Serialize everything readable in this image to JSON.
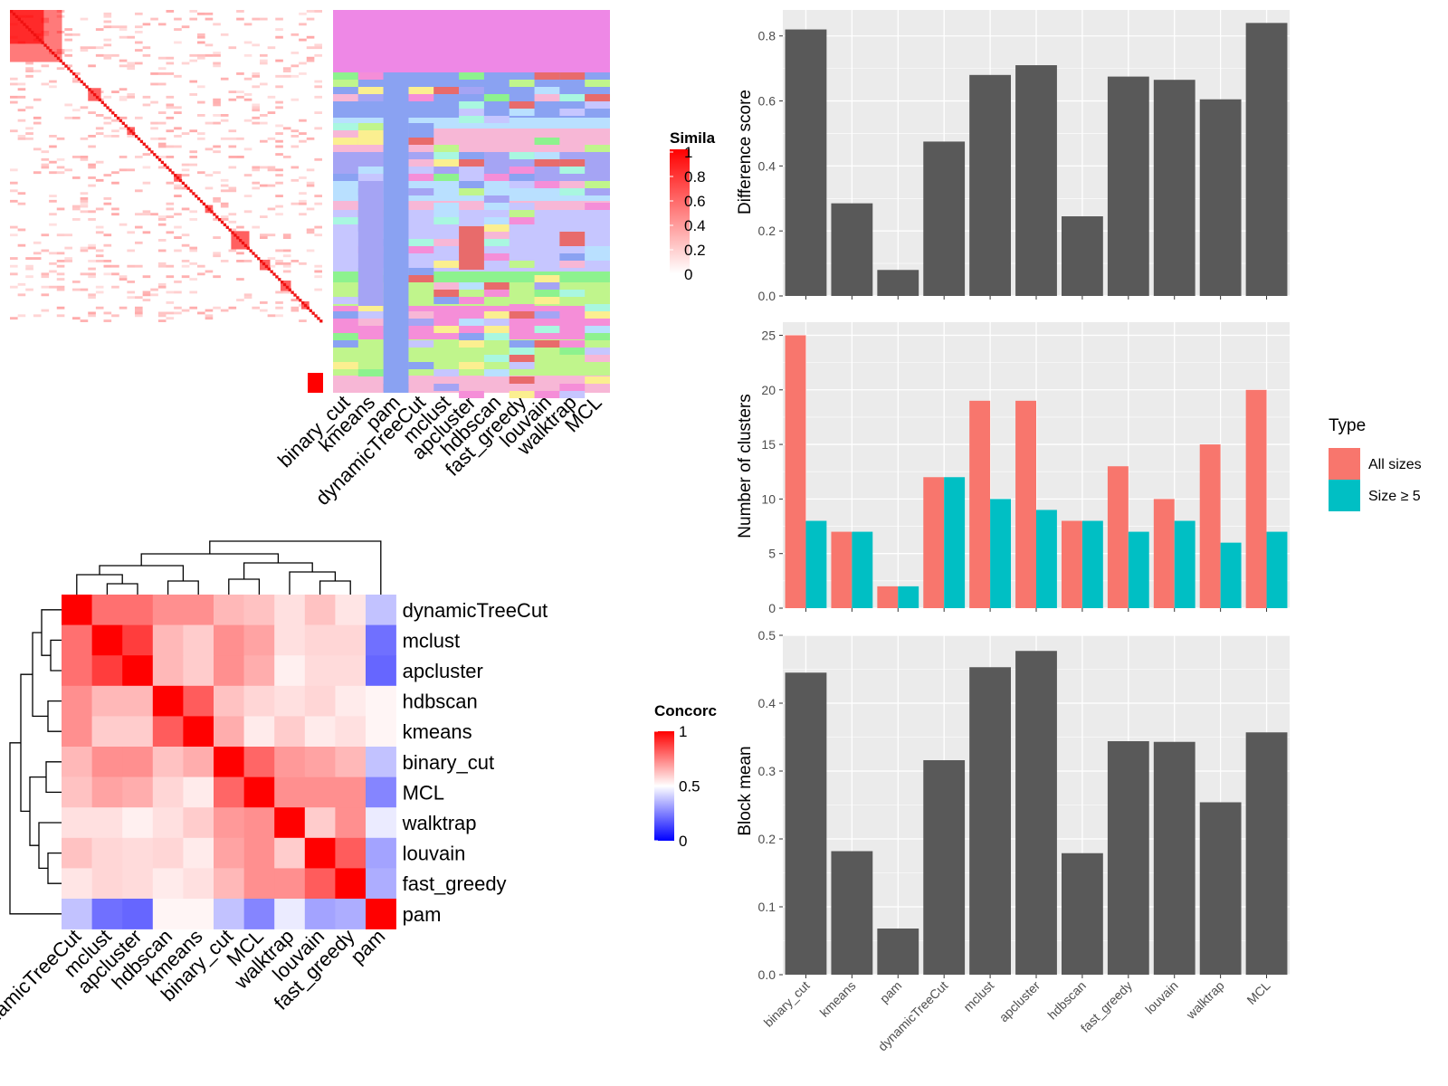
{
  "chart_data": [
    {
      "type": "heatmap",
      "legend_title": "Simila",
      "legend_ticks": [
        "1",
        "0.8",
        "0.6",
        "0.4",
        "0.2",
        "0"
      ],
      "column_labels": [
        "binary_cut",
        "kmeans",
        "pam",
        "dynamicTreeCut",
        "mclust",
        "apcluster",
        "hdbscan",
        "fast_greedy",
        "louvain",
        "walktrap",
        "MCL"
      ]
    },
    {
      "type": "heatmap",
      "legend_title": "Concorc",
      "legend_ticks": [
        "1",
        "0.5",
        "0"
      ],
      "row_labels": [
        "dynamicTreeCut",
        "mclust",
        "apcluster",
        "hdbscan",
        "kmeans",
        "binary_cut",
        "MCL",
        "walktrap",
        "louvain",
        "fast_greedy",
        "pam"
      ],
      "column_labels": [
        "dynamicTreeCut",
        "mclust",
        "apcluster",
        "hdbscan",
        "kmeans",
        "binary_cut",
        "MCL",
        "walktrap",
        "louvain",
        "fast_greedy",
        "pam"
      ],
      "values": [
        [
          1.0,
          0.78,
          0.78,
          0.72,
          0.72,
          0.64,
          0.62,
          0.56,
          0.62,
          0.55,
          0.38
        ],
        [
          0.78,
          1.0,
          0.88,
          0.64,
          0.6,
          0.72,
          0.68,
          0.56,
          0.58,
          0.58,
          0.22
        ],
        [
          0.78,
          0.88,
          1.0,
          0.64,
          0.6,
          0.72,
          0.66,
          0.53,
          0.57,
          0.57,
          0.2
        ],
        [
          0.72,
          0.64,
          0.64,
          1.0,
          0.82,
          0.62,
          0.58,
          0.56,
          0.58,
          0.54,
          0.52
        ],
        [
          0.72,
          0.6,
          0.6,
          0.82,
          1.0,
          0.66,
          0.54,
          0.6,
          0.54,
          0.56,
          0.52
        ],
        [
          0.64,
          0.72,
          0.72,
          0.62,
          0.66,
          1.0,
          0.8,
          0.7,
          0.68,
          0.64,
          0.38
        ],
        [
          0.62,
          0.68,
          0.66,
          0.58,
          0.54,
          0.8,
          1.0,
          0.72,
          0.72,
          0.72,
          0.26
        ],
        [
          0.56,
          0.56,
          0.53,
          0.56,
          0.6,
          0.7,
          0.72,
          1.0,
          0.6,
          0.72,
          0.46
        ],
        [
          0.62,
          0.58,
          0.57,
          0.58,
          0.54,
          0.68,
          0.72,
          0.6,
          1.0,
          0.82,
          0.32
        ],
        [
          0.55,
          0.58,
          0.57,
          0.54,
          0.56,
          0.64,
          0.72,
          0.72,
          0.82,
          1.0,
          0.34
        ],
        [
          0.38,
          0.22,
          0.2,
          0.52,
          0.52,
          0.38,
          0.26,
          0.46,
          0.32,
          0.34,
          1.0
        ]
      ]
    },
    {
      "type": "bar",
      "categories": [
        "binary_cut",
        "kmeans",
        "pam",
        "dynamicTreeCut",
        "mclust",
        "apcluster",
        "hdbscan",
        "fast_greedy",
        "louvain",
        "walktrap",
        "MCL"
      ],
      "values": [
        0.82,
        0.285,
        0.08,
        0.475,
        0.68,
        0.71,
        0.245,
        0.675,
        0.665,
        0.605,
        0.84
      ],
      "ylabel": "Difference score",
      "ylim": [
        0,
        0.88
      ],
      "yticks": [
        "0.0",
        "0.2",
        "0.4",
        "0.6",
        "0.8"
      ]
    },
    {
      "type": "bar",
      "categories": [
        "binary_cut",
        "kmeans",
        "pam",
        "dynamicTreeCut",
        "mclust",
        "apcluster",
        "hdbscan",
        "fast_greedy",
        "louvain",
        "walktrap",
        "MCL"
      ],
      "series": [
        {
          "name": "All sizes",
          "values": [
            25,
            7,
            2,
            12,
            19,
            19,
            8,
            13,
            10,
            15,
            20
          ],
          "color": "#f8766d"
        },
        {
          "name": "Size ≥ 5",
          "values": [
            8,
            7,
            2,
            12,
            10,
            9,
            8,
            7,
            8,
            6,
            7
          ],
          "color": "#00bfc4"
        }
      ],
      "ylabel": "Number of clusters",
      "ylim": [
        0,
        26.2
      ],
      "yticks": [
        "0",
        "5",
        "10",
        "15",
        "20",
        "25"
      ],
      "legend_title": "Type",
      "legend_placement": "right"
    },
    {
      "type": "bar",
      "categories": [
        "binary_cut",
        "kmeans",
        "pam",
        "dynamicTreeCut",
        "mclust",
        "apcluster",
        "hdbscan",
        "fast_greedy",
        "louvain",
        "walktrap",
        "MCL"
      ],
      "values": [
        0.445,
        0.182,
        0.068,
        0.316,
        0.453,
        0.477,
        0.179,
        0.344,
        0.343,
        0.254,
        0.357
      ],
      "ylabel": "Block mean",
      "ylim": [
        0,
        0.5
      ],
      "yticks": [
        "0.0",
        "0.1",
        "0.2",
        "0.3",
        "0.4",
        "0.5"
      ]
    }
  ]
}
